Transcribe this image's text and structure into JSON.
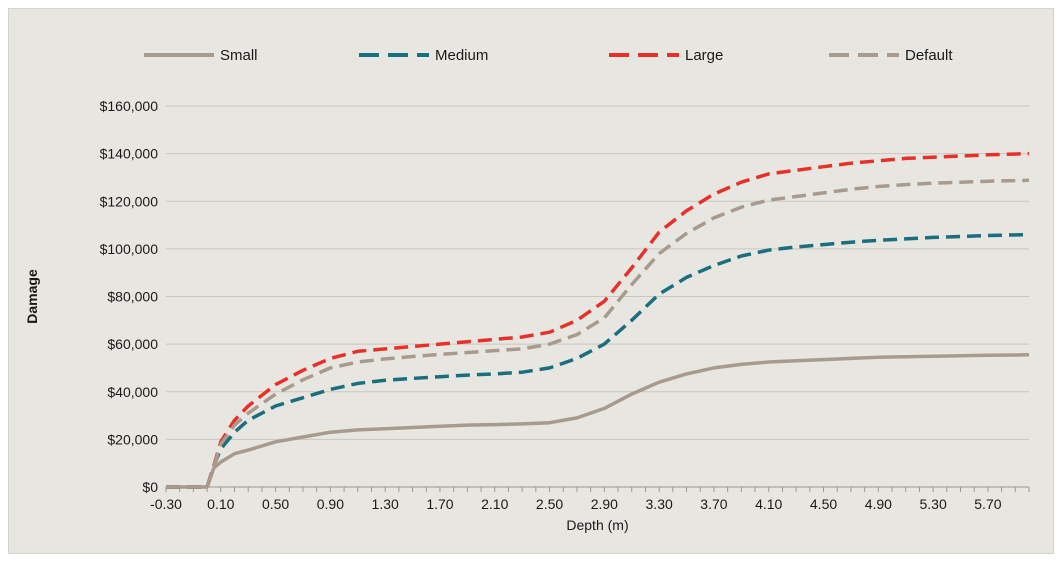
{
  "chart_data": {
    "type": "line",
    "title": "",
    "xlabel": "Depth (m)",
    "ylabel": "Damage",
    "xlim": [
      -0.3,
      6.0
    ],
    "ylim": [
      0,
      160000
    ],
    "x_tick_labels": [
      "-0.30",
      "0.10",
      "0.50",
      "0.90",
      "1.30",
      "1.70",
      "2.10",
      "2.50",
      "2.90",
      "3.30",
      "3.70",
      "4.10",
      "4.50",
      "4.90",
      "5.30",
      "5.70"
    ],
    "y_tick_values": [
      0,
      20000,
      40000,
      60000,
      80000,
      100000,
      120000,
      140000,
      160000
    ],
    "y_tick_labels": [
      "$0",
      "$20,000",
      "$40,000",
      "$60,000",
      "$80,000",
      "$100,000",
      "$120,000",
      "$140,000",
      "$160,000"
    ],
    "grid": "horizontal",
    "legend_position": "top",
    "series": [
      {
        "name": "Small",
        "color": "#a89a8c",
        "dash": "solid",
        "points": [
          [
            -0.3,
            0
          ],
          [
            0.0,
            0
          ],
          [
            0.05,
            8000
          ],
          [
            0.1,
            10500
          ],
          [
            0.2,
            14000
          ],
          [
            0.3,
            15500
          ],
          [
            0.5,
            19000
          ],
          [
            0.7,
            21000
          ],
          [
            0.9,
            23000
          ],
          [
            1.1,
            24000
          ],
          [
            1.3,
            24500
          ],
          [
            1.5,
            25000
          ],
          [
            1.7,
            25500
          ],
          [
            1.9,
            26000
          ],
          [
            2.1,
            26200
          ],
          [
            2.3,
            26500
          ],
          [
            2.5,
            27000
          ],
          [
            2.7,
            29000
          ],
          [
            2.9,
            33000
          ],
          [
            3.1,
            39000
          ],
          [
            3.3,
            44000
          ],
          [
            3.5,
            47500
          ],
          [
            3.7,
            50000
          ],
          [
            3.9,
            51500
          ],
          [
            4.1,
            52500
          ],
          [
            4.3,
            53000
          ],
          [
            4.5,
            53500
          ],
          [
            4.7,
            54000
          ],
          [
            4.9,
            54500
          ],
          [
            5.1,
            54700
          ],
          [
            5.3,
            54900
          ],
          [
            5.5,
            55100
          ],
          [
            5.7,
            55300
          ],
          [
            6.0,
            55500
          ]
        ]
      },
      {
        "name": "Medium",
        "color": "#1a6e7e",
        "dash": "dashed",
        "points": [
          [
            -0.3,
            0
          ],
          [
            0.0,
            0
          ],
          [
            0.05,
            9000
          ],
          [
            0.1,
            16000
          ],
          [
            0.2,
            23000
          ],
          [
            0.3,
            28000
          ],
          [
            0.5,
            34000
          ],
          [
            0.7,
            37500
          ],
          [
            0.9,
            41000
          ],
          [
            1.1,
            43500
          ],
          [
            1.3,
            44800
          ],
          [
            1.5,
            45600
          ],
          [
            1.7,
            46300
          ],
          [
            1.9,
            47000
          ],
          [
            2.1,
            47500
          ],
          [
            2.3,
            48200
          ],
          [
            2.5,
            50000
          ],
          [
            2.7,
            54000
          ],
          [
            2.9,
            60000
          ],
          [
            3.1,
            70000
          ],
          [
            3.3,
            81000
          ],
          [
            3.5,
            88000
          ],
          [
            3.7,
            93000
          ],
          [
            3.9,
            97000
          ],
          [
            4.1,
            99500
          ],
          [
            4.3,
            100800
          ],
          [
            4.5,
            101800
          ],
          [
            4.7,
            102800
          ],
          [
            4.9,
            103600
          ],
          [
            5.1,
            104200
          ],
          [
            5.3,
            104800
          ],
          [
            5.5,
            105200
          ],
          [
            5.7,
            105600
          ],
          [
            6.0,
            106000
          ]
        ]
      },
      {
        "name": "Large",
        "color": "#e8302a",
        "dash": "dashed",
        "points": [
          [
            -0.3,
            0
          ],
          [
            0.0,
            0
          ],
          [
            0.05,
            9000
          ],
          [
            0.1,
            19000
          ],
          [
            0.2,
            28000
          ],
          [
            0.3,
            34000
          ],
          [
            0.5,
            43000
          ],
          [
            0.7,
            49000
          ],
          [
            0.9,
            54000
          ],
          [
            1.1,
            57000
          ],
          [
            1.3,
            58000
          ],
          [
            1.5,
            59000
          ],
          [
            1.7,
            60000
          ],
          [
            1.9,
            61000
          ],
          [
            2.1,
            62000
          ],
          [
            2.3,
            63000
          ],
          [
            2.5,
            65000
          ],
          [
            2.7,
            70000
          ],
          [
            2.9,
            78000
          ],
          [
            3.1,
            92000
          ],
          [
            3.3,
            107000
          ],
          [
            3.5,
            116000
          ],
          [
            3.7,
            123000
          ],
          [
            3.9,
            128000
          ],
          [
            4.1,
            131500
          ],
          [
            4.3,
            133000
          ],
          [
            4.5,
            134500
          ],
          [
            4.7,
            136000
          ],
          [
            4.9,
            137000
          ],
          [
            5.1,
            138000
          ],
          [
            5.3,
            138500
          ],
          [
            5.5,
            139000
          ],
          [
            5.7,
            139500
          ],
          [
            6.0,
            140000
          ]
        ]
      },
      {
        "name": "Default",
        "color": "#a89a8c",
        "dash": "dashed",
        "points": [
          [
            -0.3,
            0
          ],
          [
            0.0,
            0
          ],
          [
            0.05,
            8500
          ],
          [
            0.1,
            18000
          ],
          [
            0.2,
            26000
          ],
          [
            0.3,
            31000
          ],
          [
            0.5,
            39000
          ],
          [
            0.7,
            45000
          ],
          [
            0.9,
            50000
          ],
          [
            1.1,
            52500
          ],
          [
            1.3,
            53800
          ],
          [
            1.5,
            54800
          ],
          [
            1.7,
            55700
          ],
          [
            1.9,
            56500
          ],
          [
            2.1,
            57300
          ],
          [
            2.3,
            58000
          ],
          [
            2.5,
            60000
          ],
          [
            2.7,
            64000
          ],
          [
            2.9,
            71000
          ],
          [
            3.1,
            85000
          ],
          [
            3.3,
            98000
          ],
          [
            3.5,
            106500
          ],
          [
            3.7,
            113000
          ],
          [
            3.9,
            117500
          ],
          [
            4.1,
            120500
          ],
          [
            4.3,
            122000
          ],
          [
            4.5,
            123500
          ],
          [
            4.7,
            125000
          ],
          [
            4.9,
            126200
          ],
          [
            5.1,
            127000
          ],
          [
            5.3,
            127600
          ],
          [
            5.5,
            128000
          ],
          [
            5.7,
            128400
          ],
          [
            6.0,
            128800
          ]
        ]
      }
    ]
  }
}
